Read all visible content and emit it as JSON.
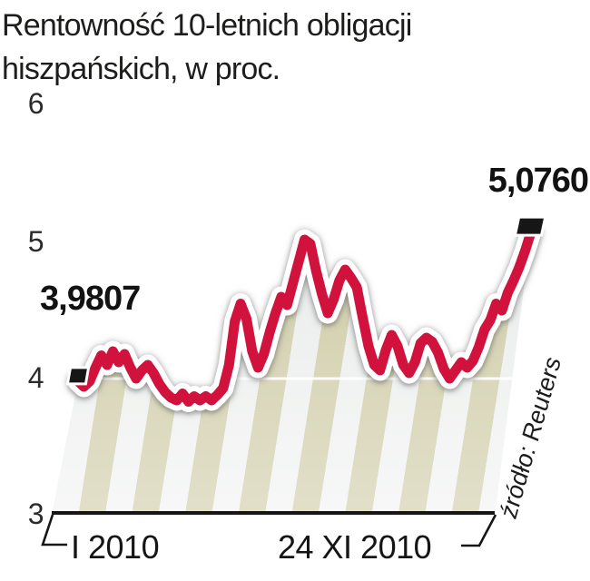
{
  "title": {
    "line1": "Rentowność 10-letnich obligacji",
    "line2": "hiszpańskich, w proc."
  },
  "annotations": {
    "start": "3,9807",
    "end": "5,0760"
  },
  "y_axis": {
    "ticks": [
      "6",
      "5",
      "4",
      "3"
    ]
  },
  "x_axis": {
    "start_label": "I 2010",
    "end_label": "24 XI 2010"
  },
  "source": "źródło: Reuters",
  "colors": {
    "line": "#d0123c",
    "stripe_khaki": "#c9c59c",
    "stripe_light": "#e6eae9",
    "marker": "#161616",
    "axis": "#161616",
    "text": "#1d1d1b"
  },
  "chart_data": {
    "type": "line",
    "title": "Rentowność 10-letnich obligacji hiszpańskich, w proc.",
    "ylabel": "rentowność, proc.",
    "ylim": [
      3,
      6
    ],
    "y_ticks": [
      3,
      4,
      5,
      6
    ],
    "x_range": [
      "I 2010",
      "24 XI 2010"
    ],
    "first_value": 3.9807,
    "last_value": 5.076,
    "grid": "single white gridline at 4, stripes fill under curve",
    "legend": "none",
    "source": "Reuters",
    "values": [
      3.9807,
      3.94,
      3.98,
      4.08,
      4.17,
      4.1,
      4.2,
      4.12,
      4.18,
      4.08,
      4.0,
      4.06,
      4.1,
      4.04,
      3.96,
      3.9,
      3.86,
      3.84,
      3.89,
      3.83,
      3.87,
      3.84,
      3.87,
      3.84,
      3.88,
      3.93,
      4.1,
      4.42,
      4.55,
      4.44,
      4.2,
      4.08,
      4.18,
      4.34,
      4.48,
      4.6,
      4.54,
      4.7,
      4.86,
      5.02,
      4.99,
      4.79,
      4.62,
      4.48,
      4.58,
      4.72,
      4.8,
      4.74,
      4.67,
      4.45,
      4.24,
      4.1,
      4.06,
      4.21,
      4.32,
      4.24,
      4.1,
      4.04,
      4.12,
      4.26,
      4.3,
      4.27,
      4.19,
      4.07,
      4.0,
      4.06,
      4.12,
      4.08,
      4.13,
      4.23,
      4.36,
      4.43,
      4.55,
      4.5,
      4.63,
      4.72,
      4.82,
      4.94,
      5.076
    ]
  }
}
